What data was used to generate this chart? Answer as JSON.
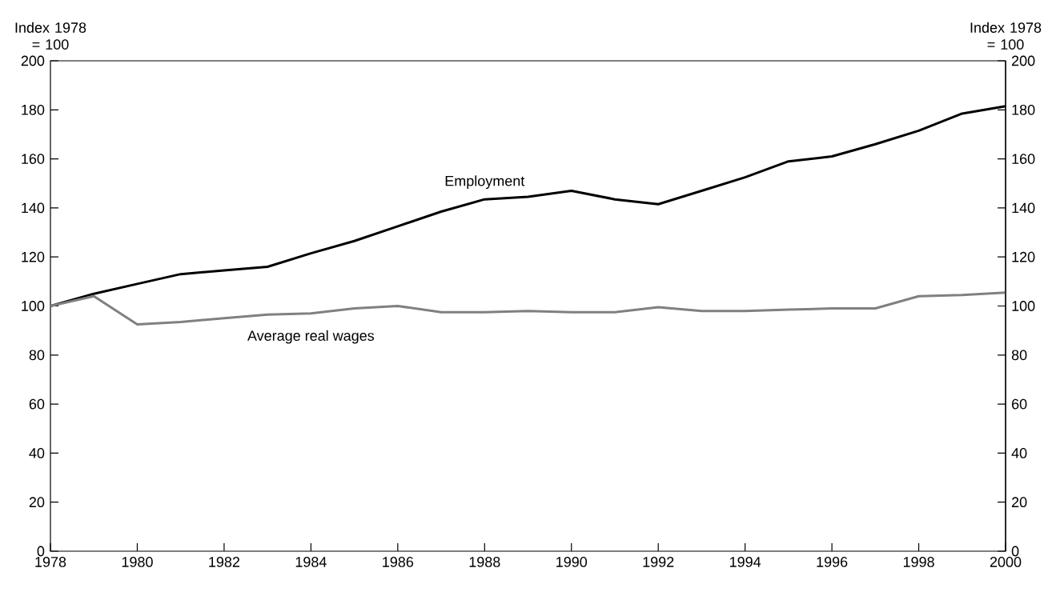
{
  "chart_data": {
    "type": "line",
    "ylabel": "Index 1978 = 100",
    "y2label": "Index 1978 = 100",
    "x": [
      1978,
      1979,
      1980,
      1981,
      1982,
      1983,
      1984,
      1985,
      1986,
      1987,
      1988,
      1989,
      1990,
      1991,
      1992,
      1993,
      1994,
      1995,
      1996,
      1997,
      1998,
      1999,
      2000
    ],
    "series": [
      {
        "name": "Employment",
        "color": "#000000",
        "values": [
          100,
          105,
          109,
          113,
          114.5,
          116,
          121.5,
          126.5,
          132.5,
          138.5,
          143.5,
          144.5,
          147,
          143.5,
          141.5,
          147,
          152.5,
          159,
          161,
          166,
          171.5,
          178.5,
          181.5
        ]
      },
      {
        "name": "Average real wages",
        "color": "#808080",
        "values": [
          100,
          104,
          92.5,
          93.5,
          95,
          96.5,
          97,
          99,
          100,
          97.5,
          97.5,
          98,
          97.5,
          97.5,
          99.5,
          98,
          98,
          98.5,
          99,
          99,
          104,
          104.5,
          105.5
        ]
      }
    ],
    "xlim": [
      1978,
      2000
    ],
    "xticks": [
      1978,
      1980,
      1982,
      1984,
      1986,
      1988,
      1990,
      1992,
      1994,
      1996,
      1998,
      2000
    ],
    "ylim": [
      0,
      200
    ],
    "yticks": [
      0,
      20,
      40,
      60,
      80,
      100,
      120,
      140,
      160,
      180,
      200
    ],
    "y2lim": [
      0,
      200
    ],
    "y2ticks": [
      0,
      20,
      40,
      60,
      80,
      100,
      120,
      140,
      160,
      180,
      200
    ],
    "grid": false,
    "legend": false,
    "marker": "none",
    "line_style": "solid"
  }
}
